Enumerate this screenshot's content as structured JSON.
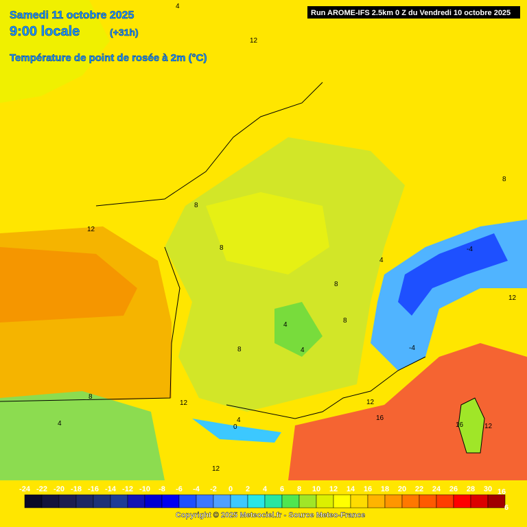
{
  "header": {
    "date": "Samedi 11 octobre 2025",
    "time": "9:00 locale",
    "lead": "(+31h)",
    "subtitle": "Température de point de rosée à 2m (°C)"
  },
  "run_info": "Run AROME-IFS 2.5km 0 Z du Vendredi 10 octobre 2025",
  "legend": {
    "labels": [
      "-24",
      "-22",
      "-20",
      "-18",
      "-16",
      "-14",
      "-12",
      "-10",
      "-8",
      "-6",
      "-4",
      "-2",
      "0",
      "2",
      "4",
      "6",
      "8",
      "10",
      "12",
      "14",
      "16",
      "18",
      "20",
      "22",
      "24",
      "26",
      "28",
      "30"
    ],
    "colors": [
      "#0a0a28",
      "#14143c",
      "#1e1e50",
      "#1e2864",
      "#1e3278",
      "#1e3c96",
      "#1414b4",
      "#0000d2",
      "#0000f0",
      "#1e50ff",
      "#3c78ff",
      "#50a0ff",
      "#3cc8ff",
      "#28e6e6",
      "#28e6a0",
      "#50e650",
      "#a0e628",
      "#dcf000",
      "#ffff00",
      "#ffdc00",
      "#ffb400",
      "#ff9600",
      "#ff7800",
      "#ff5a00",
      "#ff3c00",
      "#ff0000",
      "#dc0000",
      "#a00000"
    ],
    "end_labels": [
      "16",
      "6"
    ]
  },
  "credit": "Copyright © 2025 Meteociel.fr - Source Meteo-France",
  "contour_labels": [
    "4",
    "12",
    "8",
    "12",
    "8",
    "4",
    "-4",
    "-4",
    "4",
    "12",
    "8",
    "8",
    "4",
    "4",
    "12",
    "16",
    "16",
    "12",
    "0",
    "12",
    "8",
    "4",
    "8",
    "8",
    "12"
  ]
}
